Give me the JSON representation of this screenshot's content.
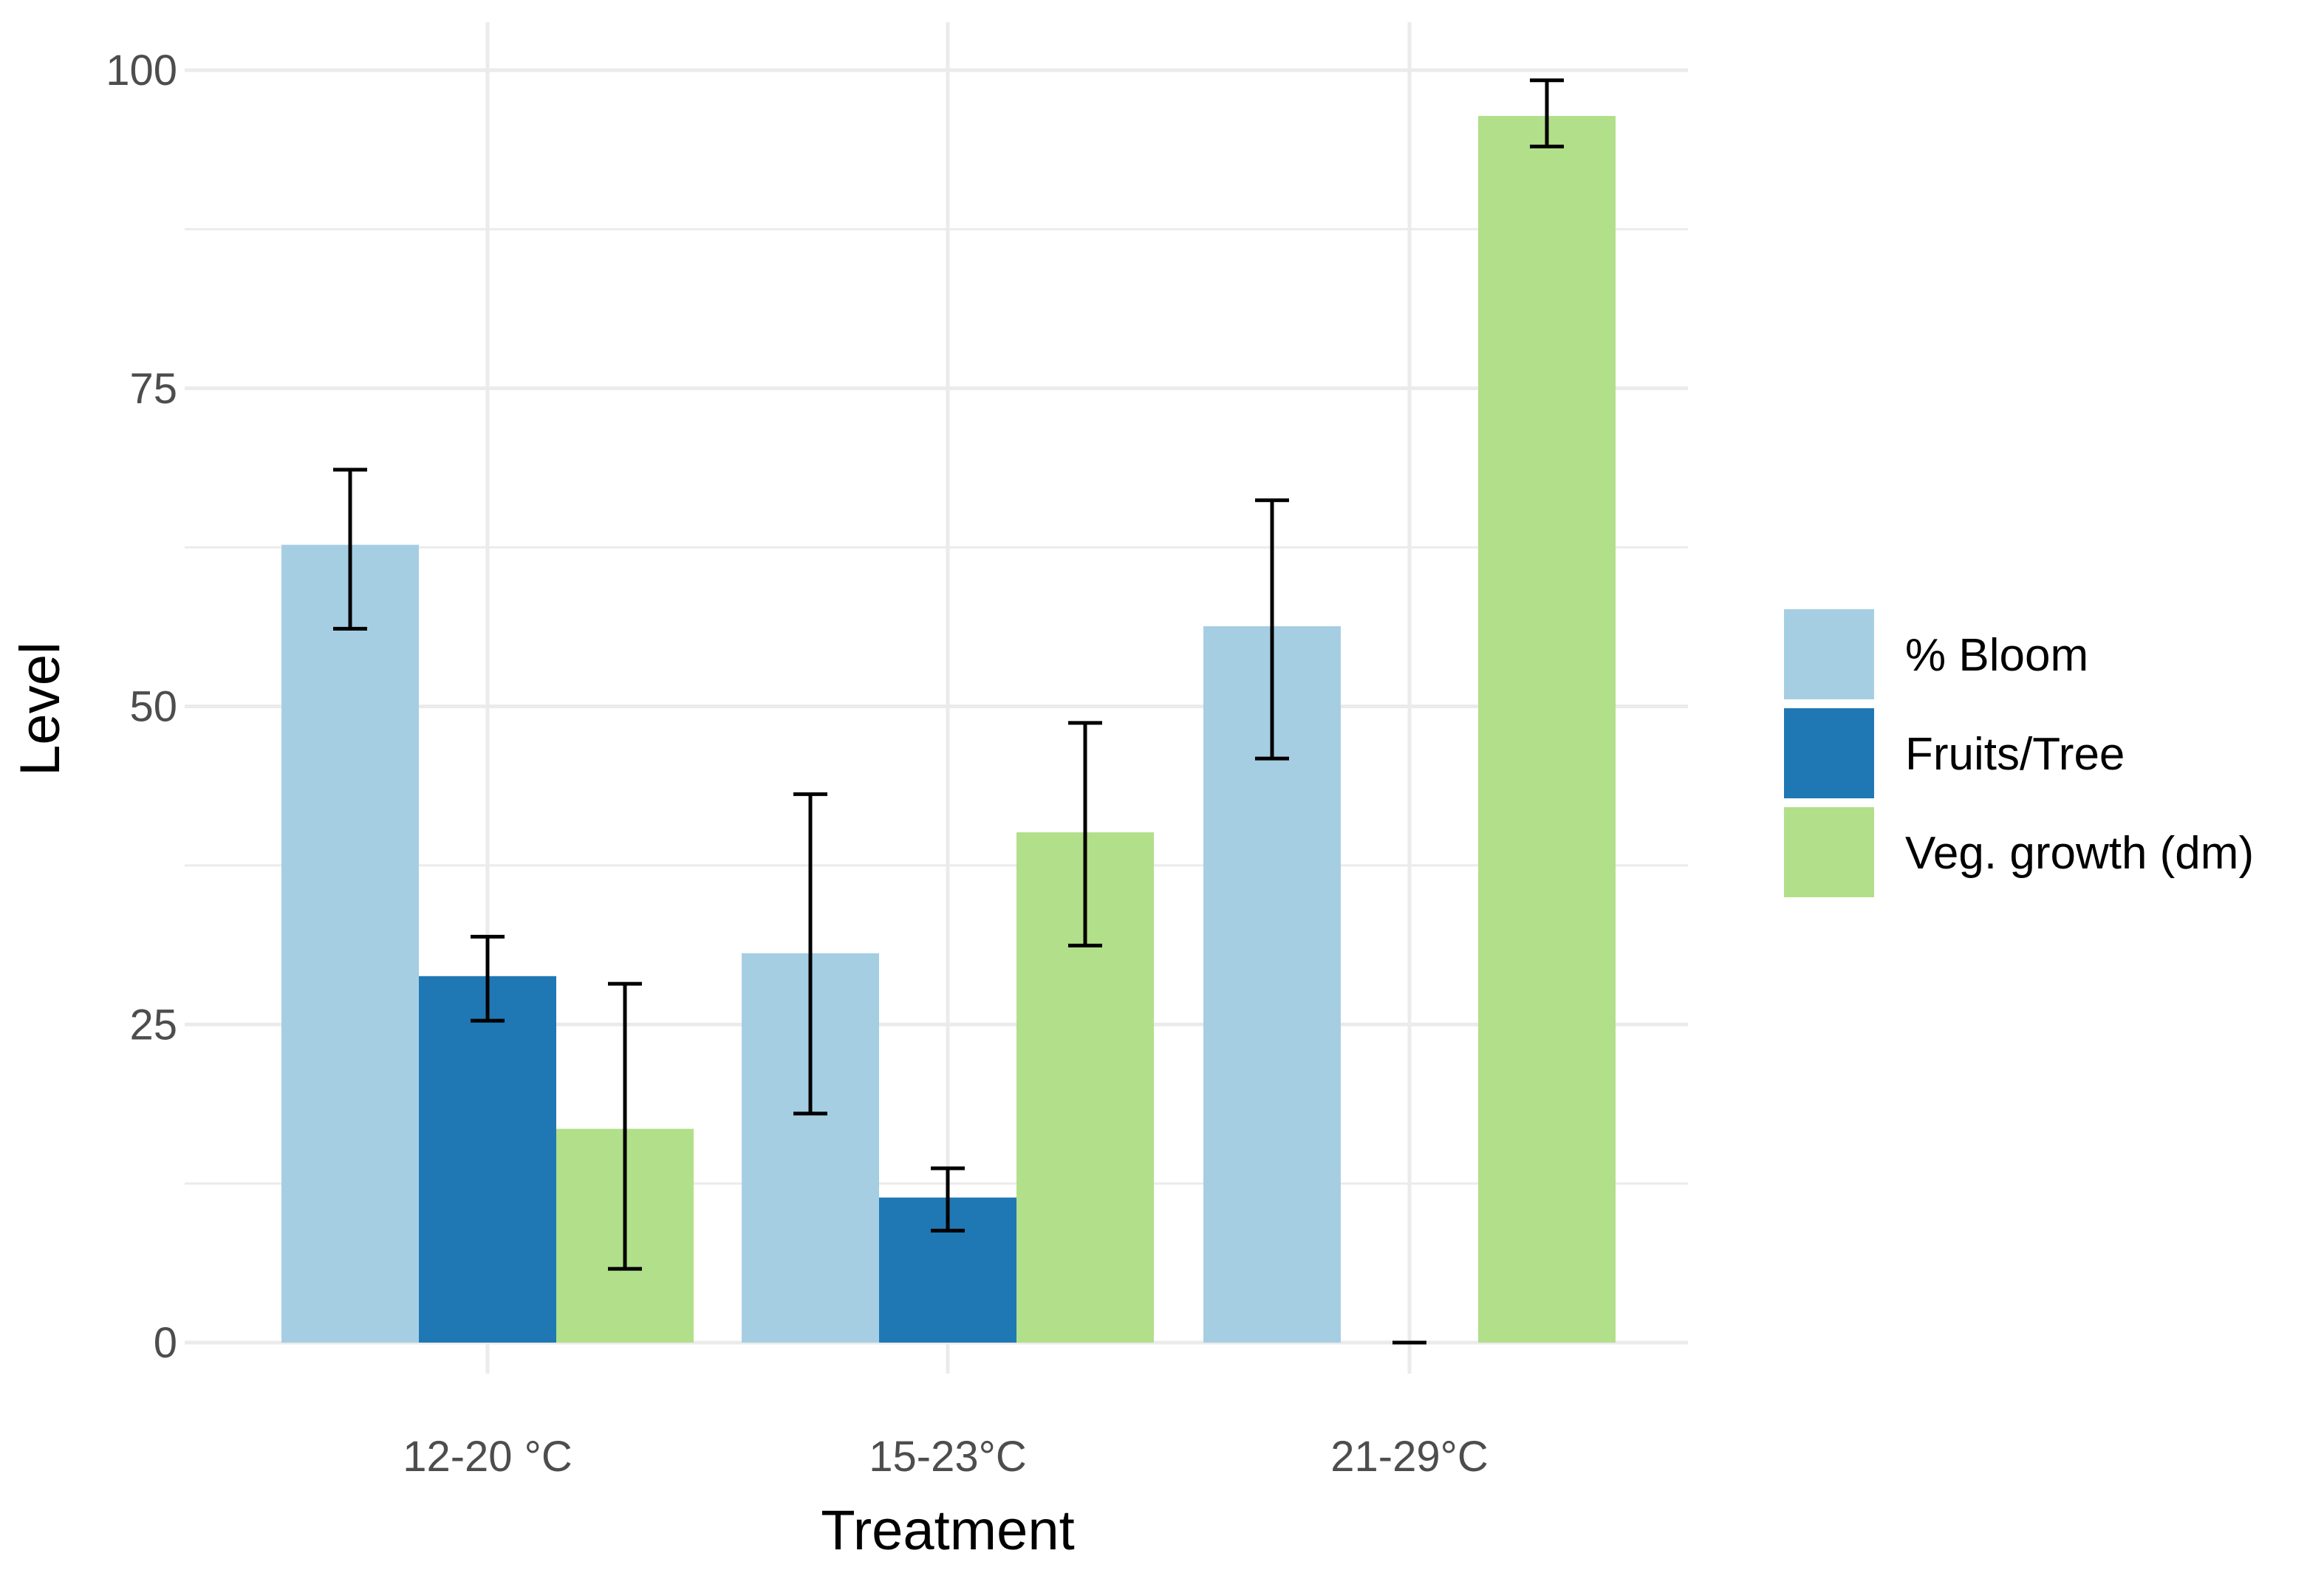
{
  "chart_data": {
    "type": "bar",
    "title": "",
    "xlabel": "Treatment",
    "ylabel": "Level",
    "categories": [
      "12-20 °C",
      "15-23°C",
      "21-29°C"
    ],
    "ylim": [
      0,
      100
    ],
    "yticks": [
      0,
      25,
      50,
      75,
      100
    ],
    "grid": true,
    "legend_position": "right",
    "series": [
      {
        "name": "% Bloom",
        "color": "#a6cee3",
        "values": [
          62.7,
          30.6,
          56.3
        ],
        "error_low": [
          56.1,
          18.0,
          45.9
        ],
        "error_high": [
          68.6,
          43.1,
          66.2
        ]
      },
      {
        "name": "Fruits/Tree",
        "color": "#1f78b4",
        "values": [
          28.8,
          11.4,
          0
        ],
        "error_low": [
          25.3,
          8.8,
          0
        ],
        "error_high": [
          31.9,
          13.7,
          0
        ]
      },
      {
        "name": "Veg. growth (dm)",
        "color": "#b2df8a",
        "values": [
          16.8,
          40.1,
          96.4
        ],
        "error_low": [
          5.8,
          31.2,
          94.0
        ],
        "error_high": [
          28.2,
          48.7,
          99.2
        ]
      }
    ]
  }
}
